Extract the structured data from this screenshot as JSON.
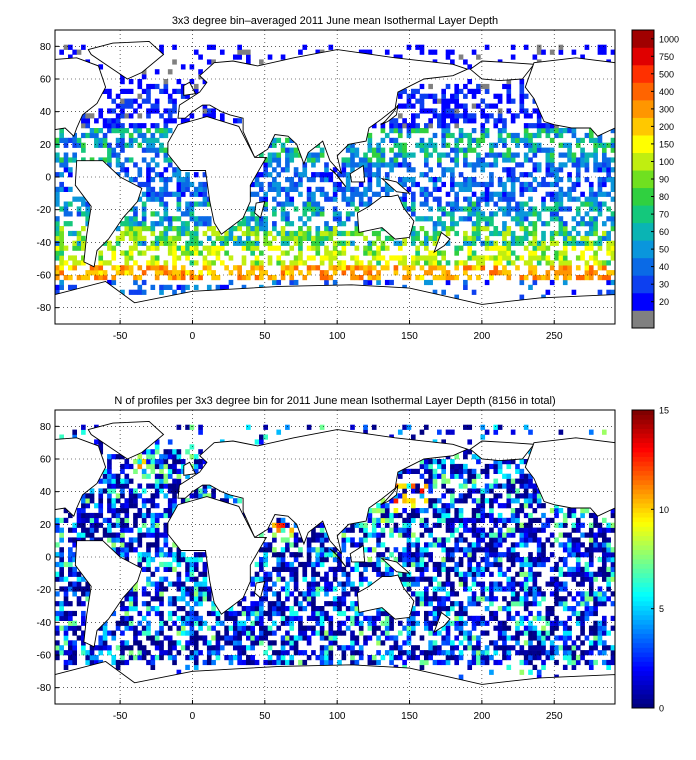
{
  "chart_data": [
    {
      "type": "heatmap",
      "title": "3x3 degree bin–averaged 2011 June mean Isothermal Layer Depth",
      "xlabel": "",
      "ylabel": "",
      "xlim": [
        -95,
        292
      ],
      "ylim": [
        -90,
        90
      ],
      "x_ticks": [
        -50,
        0,
        50,
        100,
        150,
        200,
        250
      ],
      "y_ticks": [
        -80,
        -60,
        -40,
        -20,
        0,
        20,
        40,
        60,
        80
      ],
      "grid": "dotted",
      "bin_size_deg": 3,
      "colorbar": {
        "placement": "right",
        "ticks": [
          1000,
          750,
          500,
          400,
          300,
          200,
          150,
          100,
          90,
          80,
          70,
          60,
          50,
          40,
          30,
          20
        ],
        "colors": [
          "#808080",
          "#0000ff",
          "#0d40f0",
          "#0a6ae6",
          "#0a96dc",
          "#0ab4b4",
          "#14c87c",
          "#30d040",
          "#70e020",
          "#c0ee10",
          "#ffff00",
          "#ffc800",
          "#ff9600",
          "#ff6400",
          "#ff3000",
          "#e00000",
          "#a00000"
        ]
      },
      "bands": [
        {
          "lat": [
            -62,
            -54
          ],
          "value": 300
        },
        {
          "lat": [
            -54,
            -42
          ],
          "value": 120
        },
        {
          "lat": [
            -42,
            -30
          ],
          "value": 80
        },
        {
          "lat": [
            -30,
            -16
          ],
          "value": 55
        },
        {
          "lat": [
            -16,
            10
          ],
          "value": 40
        },
        {
          "lat": [
            10,
            30
          ],
          "value": 60
        },
        {
          "lat": [
            30,
            58
          ],
          "value": 25
        },
        {
          "lat": [
            58,
            80
          ],
          "value": 20
        }
      ]
    },
    {
      "type": "heatmap",
      "title": "N of profiles per 3x3 degree bin for 2011 June mean Isothermal Layer Depth  (8156 in total)",
      "xlabel": "",
      "ylabel": "",
      "xlim": [
        -95,
        292
      ],
      "ylim": [
        -90,
        90
      ],
      "x_ticks": [
        -50,
        0,
        50,
        100,
        150,
        200,
        250
      ],
      "y_ticks": [
        -80,
        -60,
        -40,
        -20,
        0,
        20,
        40,
        60,
        80
      ],
      "grid": "dotted",
      "bin_size_deg": 3,
      "colorbar": {
        "placement": "right",
        "range": [
          0,
          15
        ],
        "ticks": [
          0,
          5,
          10,
          15
        ],
        "colormap": "jet"
      },
      "clusters": [
        {
          "lon": 140,
          "lat": 38,
          "value": 14
        },
        {
          "lon": 155,
          "lat": 40,
          "value": 14
        },
        {
          "lon": 63,
          "lat": 20,
          "value": 13
        },
        {
          "lon": -35,
          "lat": 55,
          "value": 10
        },
        {
          "lon": 130,
          "lat": 25,
          "value": 9
        }
      ]
    }
  ]
}
